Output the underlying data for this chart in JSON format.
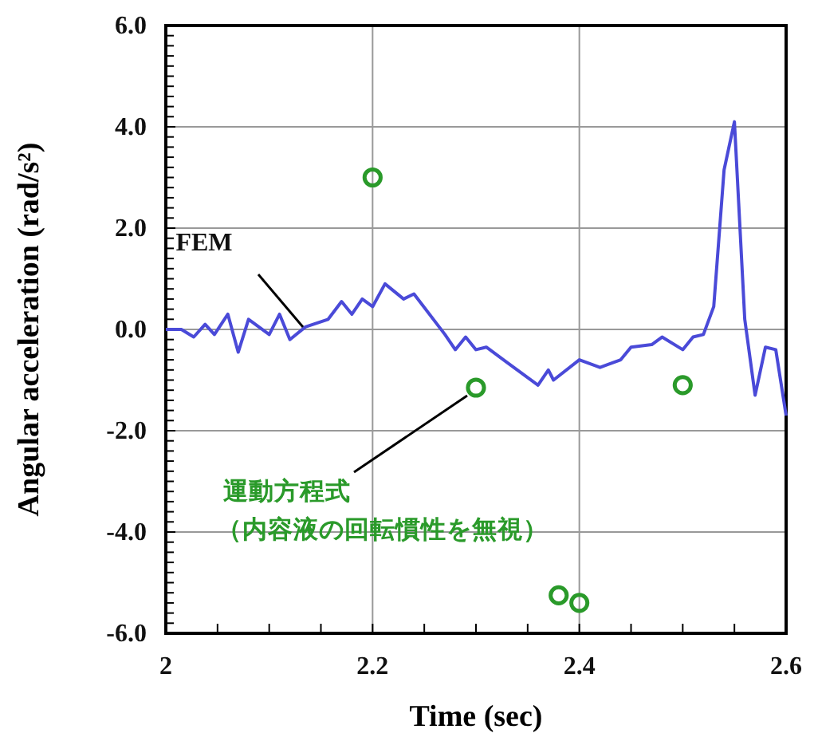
{
  "chart_data": {
    "type": "line",
    "xlabel": "Time (sec)",
    "ylabel": "Angular acceleration (rad/s²)",
    "xlim": [
      2,
      2.6
    ],
    "ylim": [
      -6,
      6
    ],
    "xticks": [
      2,
      {
        "value": 2.05,
        "label": null
      },
      {
        "value": 2.1,
        "label": null
      },
      {
        "value": 2.15,
        "label": null
      },
      2.2,
      {
        "value": 2.25,
        "label": null
      },
      {
        "value": 2.3,
        "label": null
      },
      {
        "value": 2.35,
        "label": null
      },
      2.4,
      {
        "value": 2.45,
        "label": null
      },
      {
        "value": 2.5,
        "label": null
      },
      {
        "value": 2.55,
        "label": null
      },
      2.6
    ],
    "yticks": [
      {
        "value": -6,
        "label": "-6.0"
      },
      {
        "value": -4,
        "label": "-4.0"
      },
      {
        "value": -2,
        "label": "-2.0"
      },
      {
        "value": 0,
        "label": "0.0"
      },
      {
        "value": 2,
        "label": "2.0"
      },
      {
        "value": 4,
        "label": "4.0"
      },
      {
        "value": 6,
        "label": "6.0"
      }
    ],
    "grid": true,
    "legend": false,
    "series": [
      {
        "name": "FEM",
        "color": "#4a4ad8",
        "line_style": "solid",
        "marker": "none",
        "x": [
          2.0,
          2.015,
          2.027,
          2.038,
          2.047,
          2.06,
          2.07,
          2.08,
          2.1,
          2.11,
          2.12,
          2.135,
          2.157,
          2.17,
          2.18,
          2.19,
          2.2,
          2.212,
          2.23,
          2.24,
          2.27,
          2.28,
          2.29,
          2.3,
          2.31,
          2.33,
          2.36,
          2.37,
          2.375,
          2.4,
          2.42,
          2.44,
          2.45,
          2.47,
          2.48,
          2.5,
          2.51,
          2.52,
          2.53,
          2.54,
          2.55,
          2.56,
          2.57,
          2.58,
          2.59,
          2.6
        ],
        "values": [
          0,
          0,
          -0.15,
          0.1,
          -0.1,
          0.3,
          -0.45,
          0.2,
          -0.1,
          0.3,
          -0.2,
          0.05,
          0.2,
          0.55,
          0.3,
          0.6,
          0.45,
          0.9,
          0.6,
          0.7,
          -0.1,
          -0.4,
          -0.15,
          -0.4,
          -0.35,
          -0.65,
          -1.1,
          -0.8,
          -1.0,
          -0.6,
          -0.75,
          -0.6,
          -0.35,
          -0.3,
          -0.15,
          -0.4,
          -0.15,
          -0.1,
          0.45,
          3.15,
          4.1,
          0.2,
          -1.3,
          -0.35,
          -0.4,
          -1.7
        ]
      },
      {
        "name": "運動方程式（内容液の回転慣性を無視）",
        "type": "scatter",
        "color": "#2a9a2a",
        "marker": "circle",
        "x": [
          2.2,
          2.3,
          2.38,
          2.4,
          2.5
        ],
        "values": [
          3.0,
          -1.15,
          -5.25,
          -5.4,
          -1.1
        ]
      }
    ]
  }
}
